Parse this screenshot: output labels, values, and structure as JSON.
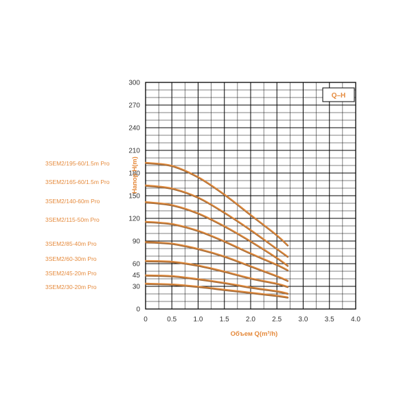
{
  "chart_data": {
    "type": "line",
    "title": "",
    "xlabel": "Объем Q(m³/h)",
    "ylabel": "Напор H(m)",
    "xlim": [
      0,
      4.0
    ],
    "ylim": [
      0,
      300
    ],
    "x_ticks": [
      "0",
      "0.5",
      "1.0",
      "1.5",
      "2.0",
      "2.5",
      "3.0",
      "3.5",
      "4.0"
    ],
    "y_ticks": [
      "0",
      "30",
      "45",
      "60",
      "90",
      "120",
      "150",
      "180",
      "210",
      "240",
      "270",
      "300"
    ],
    "grid": true,
    "legend_box": "Q–H",
    "colors": {
      "curve": "#e0893a",
      "curve_shadow": "#a06a3a",
      "label": "#e58a3c",
      "grid": "#000000"
    },
    "series": [
      {
        "name": "3SEM2/195-60/1.5m Pro",
        "x": [
          0,
          0.5,
          1.0,
          1.5,
          2.0,
          2.5,
          2.7
        ],
        "y": [
          194,
          190,
          175,
          152,
          125,
          98,
          85
        ]
      },
      {
        "name": "3SEM2/165-60/1.5m Pro",
        "x": [
          0,
          0.5,
          1.0,
          1.5,
          2.0,
          2.5,
          2.7
        ],
        "y": [
          164,
          160,
          148,
          128,
          105,
          80,
          70
        ]
      },
      {
        "name": "3SEM2/140-60m Pro",
        "x": [
          0,
          0.5,
          1.0,
          1.5,
          2.0,
          2.5,
          2.7
        ],
        "y": [
          142,
          138,
          127,
          110,
          90,
          68,
          58
        ]
      },
      {
        "name": "3SEM2/115-50m Pro",
        "x": [
          0,
          0.5,
          1.0,
          1.5,
          2.0,
          2.5,
          2.7
        ],
        "y": [
          116,
          113,
          104,
          90,
          74,
          59,
          52
        ]
      },
      {
        "name": "3SEM2/85-40m Pro",
        "x": [
          0,
          0.5,
          1.0,
          1.5,
          2.0,
          2.5,
          2.7
        ],
        "y": [
          89,
          87,
          80,
          70,
          57,
          44,
          38
        ]
      },
      {
        "name": "3SEM2/60-30m Pro",
        "x": [
          0,
          0.5,
          1.0,
          1.5,
          2.0,
          2.5,
          2.7
        ],
        "y": [
          64,
          63,
          58,
          50,
          41,
          34,
          30
        ]
      },
      {
        "name": "3SEM2/45-20m Pro",
        "x": [
          0,
          0.5,
          1.0,
          1.5,
          2.0,
          2.5,
          2.7
        ],
        "y": [
          45,
          44,
          40,
          35,
          29,
          24,
          21
        ]
      },
      {
        "name": "3SEM2/30-20m Pro",
        "x": [
          0,
          0.5,
          1.0,
          1.5,
          2.0,
          2.5,
          2.7
        ],
        "y": [
          34,
          33,
          30,
          26,
          22,
          18,
          16
        ]
      }
    ]
  }
}
